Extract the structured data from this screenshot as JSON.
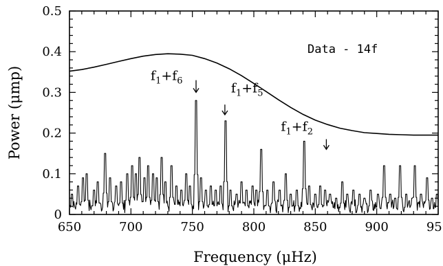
{
  "chart_data": {
    "type": "line",
    "xlabel": "Frequency (μHz)",
    "ylabel": "Power (μmp)",
    "xlim": [
      650,
      950
    ],
    "ylim": [
      0,
      0.5
    ],
    "xticks": [
      650,
      700,
      750,
      800,
      850,
      900,
      950
    ],
    "xtick_labels": [
      "650",
      "700",
      "750",
      "800",
      "850",
      "900",
      "950"
    ],
    "yticks": [
      0,
      0.1,
      0.2,
      0.3,
      0.4,
      0.5
    ],
    "ytick_labels": [
      "0",
      "0.1",
      "0.2",
      "0.3",
      "0.4",
      "0.5"
    ],
    "legend_text": "Data - 14f",
    "grid": false,
    "series": [
      {
        "role": "threshold",
        "x": [
          650,
          660,
          670,
          680,
          690,
          700,
          710,
          720,
          730,
          740,
          750,
          760,
          770,
          780,
          790,
          800,
          810,
          820,
          830,
          840,
          850,
          860,
          870,
          880,
          890,
          900,
          910,
          920,
          930,
          940,
          950
        ],
        "y": [
          0.352,
          0.356,
          0.362,
          0.369,
          0.376,
          0.383,
          0.389,
          0.393,
          0.395,
          0.394,
          0.391,
          0.383,
          0.372,
          0.358,
          0.341,
          0.322,
          0.302,
          0.282,
          0.263,
          0.246,
          0.232,
          0.221,
          0.212,
          0.206,
          0.201,
          0.199,
          0.197,
          0.196,
          0.195,
          0.195,
          0.195
        ]
      },
      {
        "role": "periodogram",
        "peaks": [
          [
            652,
            0.05
          ],
          [
            657,
            0.07
          ],
          [
            661,
            0.09
          ],
          [
            664,
            0.1
          ],
          [
            670,
            0.06
          ],
          [
            673,
            0.08
          ],
          [
            679,
            0.15
          ],
          [
            683,
            0.09
          ],
          [
            688,
            0.07
          ],
          [
            692,
            0.08
          ],
          [
            697,
            0.1
          ],
          [
            701,
            0.12
          ],
          [
            704,
            0.1
          ],
          [
            707,
            0.14
          ],
          [
            711,
            0.09
          ],
          [
            714,
            0.12
          ],
          [
            718,
            0.1
          ],
          [
            721,
            0.09
          ],
          [
            725,
            0.14
          ],
          [
            728,
            0.08
          ],
          [
            733,
            0.12
          ],
          [
            737,
            0.07
          ],
          [
            741,
            0.06
          ],
          [
            745,
            0.1
          ],
          [
            748,
            0.07
          ],
          [
            753,
            0.28
          ],
          [
            757,
            0.09
          ],
          [
            761,
            0.06
          ],
          [
            765,
            0.07
          ],
          [
            769,
            0.06
          ],
          [
            773,
            0.07
          ],
          [
            777,
            0.23
          ],
          [
            781,
            0.06
          ],
          [
            786,
            0.05
          ],
          [
            790,
            0.08
          ],
          [
            794,
            0.06
          ],
          [
            799,
            0.07
          ],
          [
            802,
            0.06
          ],
          [
            806,
            0.16
          ],
          [
            811,
            0.06
          ],
          [
            816,
            0.08
          ],
          [
            821,
            0.06
          ],
          [
            826,
            0.1
          ],
          [
            830,
            0.05
          ],
          [
            835,
            0.06
          ],
          [
            841,
            0.18
          ],
          [
            845,
            0.07
          ],
          [
            850,
            0.05
          ],
          [
            854,
            0.07
          ],
          [
            858,
            0.06
          ],
          [
            862,
            0.05
          ],
          [
            867,
            0.04
          ],
          [
            872,
            0.08
          ],
          [
            876,
            0.05
          ],
          [
            881,
            0.06
          ],
          [
            886,
            0.05
          ],
          [
            890,
            0.04
          ],
          [
            895,
            0.06
          ],
          [
            901,
            0.05
          ],
          [
            906,
            0.12
          ],
          [
            911,
            0.05
          ],
          [
            915,
            0.04
          ],
          [
            919,
            0.12
          ],
          [
            924,
            0.05
          ],
          [
            929,
            0.04
          ],
          [
            931,
            0.12
          ],
          [
            936,
            0.05
          ],
          [
            941,
            0.09
          ],
          [
            945,
            0.04
          ],
          [
            949,
            0.05
          ]
        ]
      }
    ],
    "annotations": [
      {
        "main": "f",
        "sub1": "1",
        "plus": "+f",
        "sub2": "6",
        "x": 753,
        "y_text": 0.33,
        "arrow_from": 0.33,
        "arrow_to": 0.3
      },
      {
        "main": "f",
        "sub1": "1",
        "plus": "+f",
        "sub2": "5",
        "x": 777,
        "y_text": 0.3,
        "arrow_from": 0.27,
        "arrow_to": 0.245
      },
      {
        "main": "f",
        "sub1": "1",
        "plus": "+f",
        "sub2": "2",
        "x": 859,
        "y_text": 0.205,
        "arrow_from": 0.185,
        "arrow_to": 0.16
      }
    ]
  }
}
